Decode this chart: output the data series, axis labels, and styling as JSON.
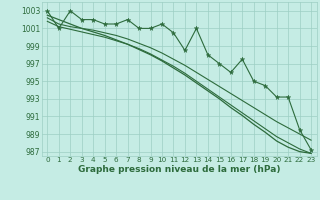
{
  "title": "Graphe pression niveau de la mer (hPa)",
  "x_values": [
    0,
    1,
    2,
    3,
    4,
    5,
    6,
    7,
    8,
    9,
    10,
    11,
    12,
    13,
    14,
    15,
    16,
    17,
    18,
    19,
    20,
    21,
    22,
    23
  ],
  "y_jagged": [
    1003,
    1001,
    1003,
    1002,
    1002,
    1001.5,
    1001.5,
    1002,
    1001,
    1001,
    1001.5,
    1000.5,
    998.5,
    1001,
    998,
    997,
    996,
    997.5,
    995,
    994.5,
    993.2,
    993.2,
    989.5,
    987.2
  ],
  "y_smooth1": [
    1002.2,
    1001.5,
    1001.2,
    1001.0,
    1000.8,
    1000.5,
    1000.2,
    999.8,
    999.3,
    998.8,
    998.2,
    997.5,
    996.8,
    996.0,
    995.2,
    994.4,
    993.6,
    992.8,
    992.0,
    991.2,
    990.4,
    989.7,
    989.0,
    988.3
  ],
  "y_smooth2": [
    1001.8,
    1001.2,
    1000.9,
    1000.6,
    1000.3,
    1000.0,
    999.6,
    999.2,
    998.7,
    998.1,
    997.4,
    996.7,
    995.9,
    995.0,
    994.1,
    993.2,
    992.3,
    991.4,
    990.5,
    989.6,
    988.7,
    988.0,
    987.3,
    986.8
  ],
  "y_trend": [
    1002.5,
    1002.0,
    1001.5,
    1001.0,
    1000.6,
    1000.2,
    999.7,
    999.2,
    998.6,
    998.0,
    997.3,
    996.5,
    995.7,
    994.8,
    993.9,
    993.0,
    992.0,
    991.1,
    990.1,
    989.2,
    988.2,
    987.5,
    987.0,
    986.8
  ],
  "ylim": [
    986.5,
    1004.0
  ],
  "xlim": [
    -0.5,
    23.5
  ],
  "yticks": [
    987,
    989,
    991,
    993,
    995,
    997,
    999,
    1001,
    1003
  ],
  "xticks": [
    0,
    1,
    2,
    3,
    4,
    5,
    6,
    7,
    8,
    9,
    10,
    11,
    12,
    13,
    14,
    15,
    16,
    17,
    18,
    19,
    20,
    21,
    22,
    23
  ],
  "bg_color": "#c5ece4",
  "grid_color": "#9dcfc4",
  "line_color": "#2d6b3c",
  "text_color": "#2d6b3c",
  "title_fontsize": 6.5,
  "tick_fontsize": 5.5
}
